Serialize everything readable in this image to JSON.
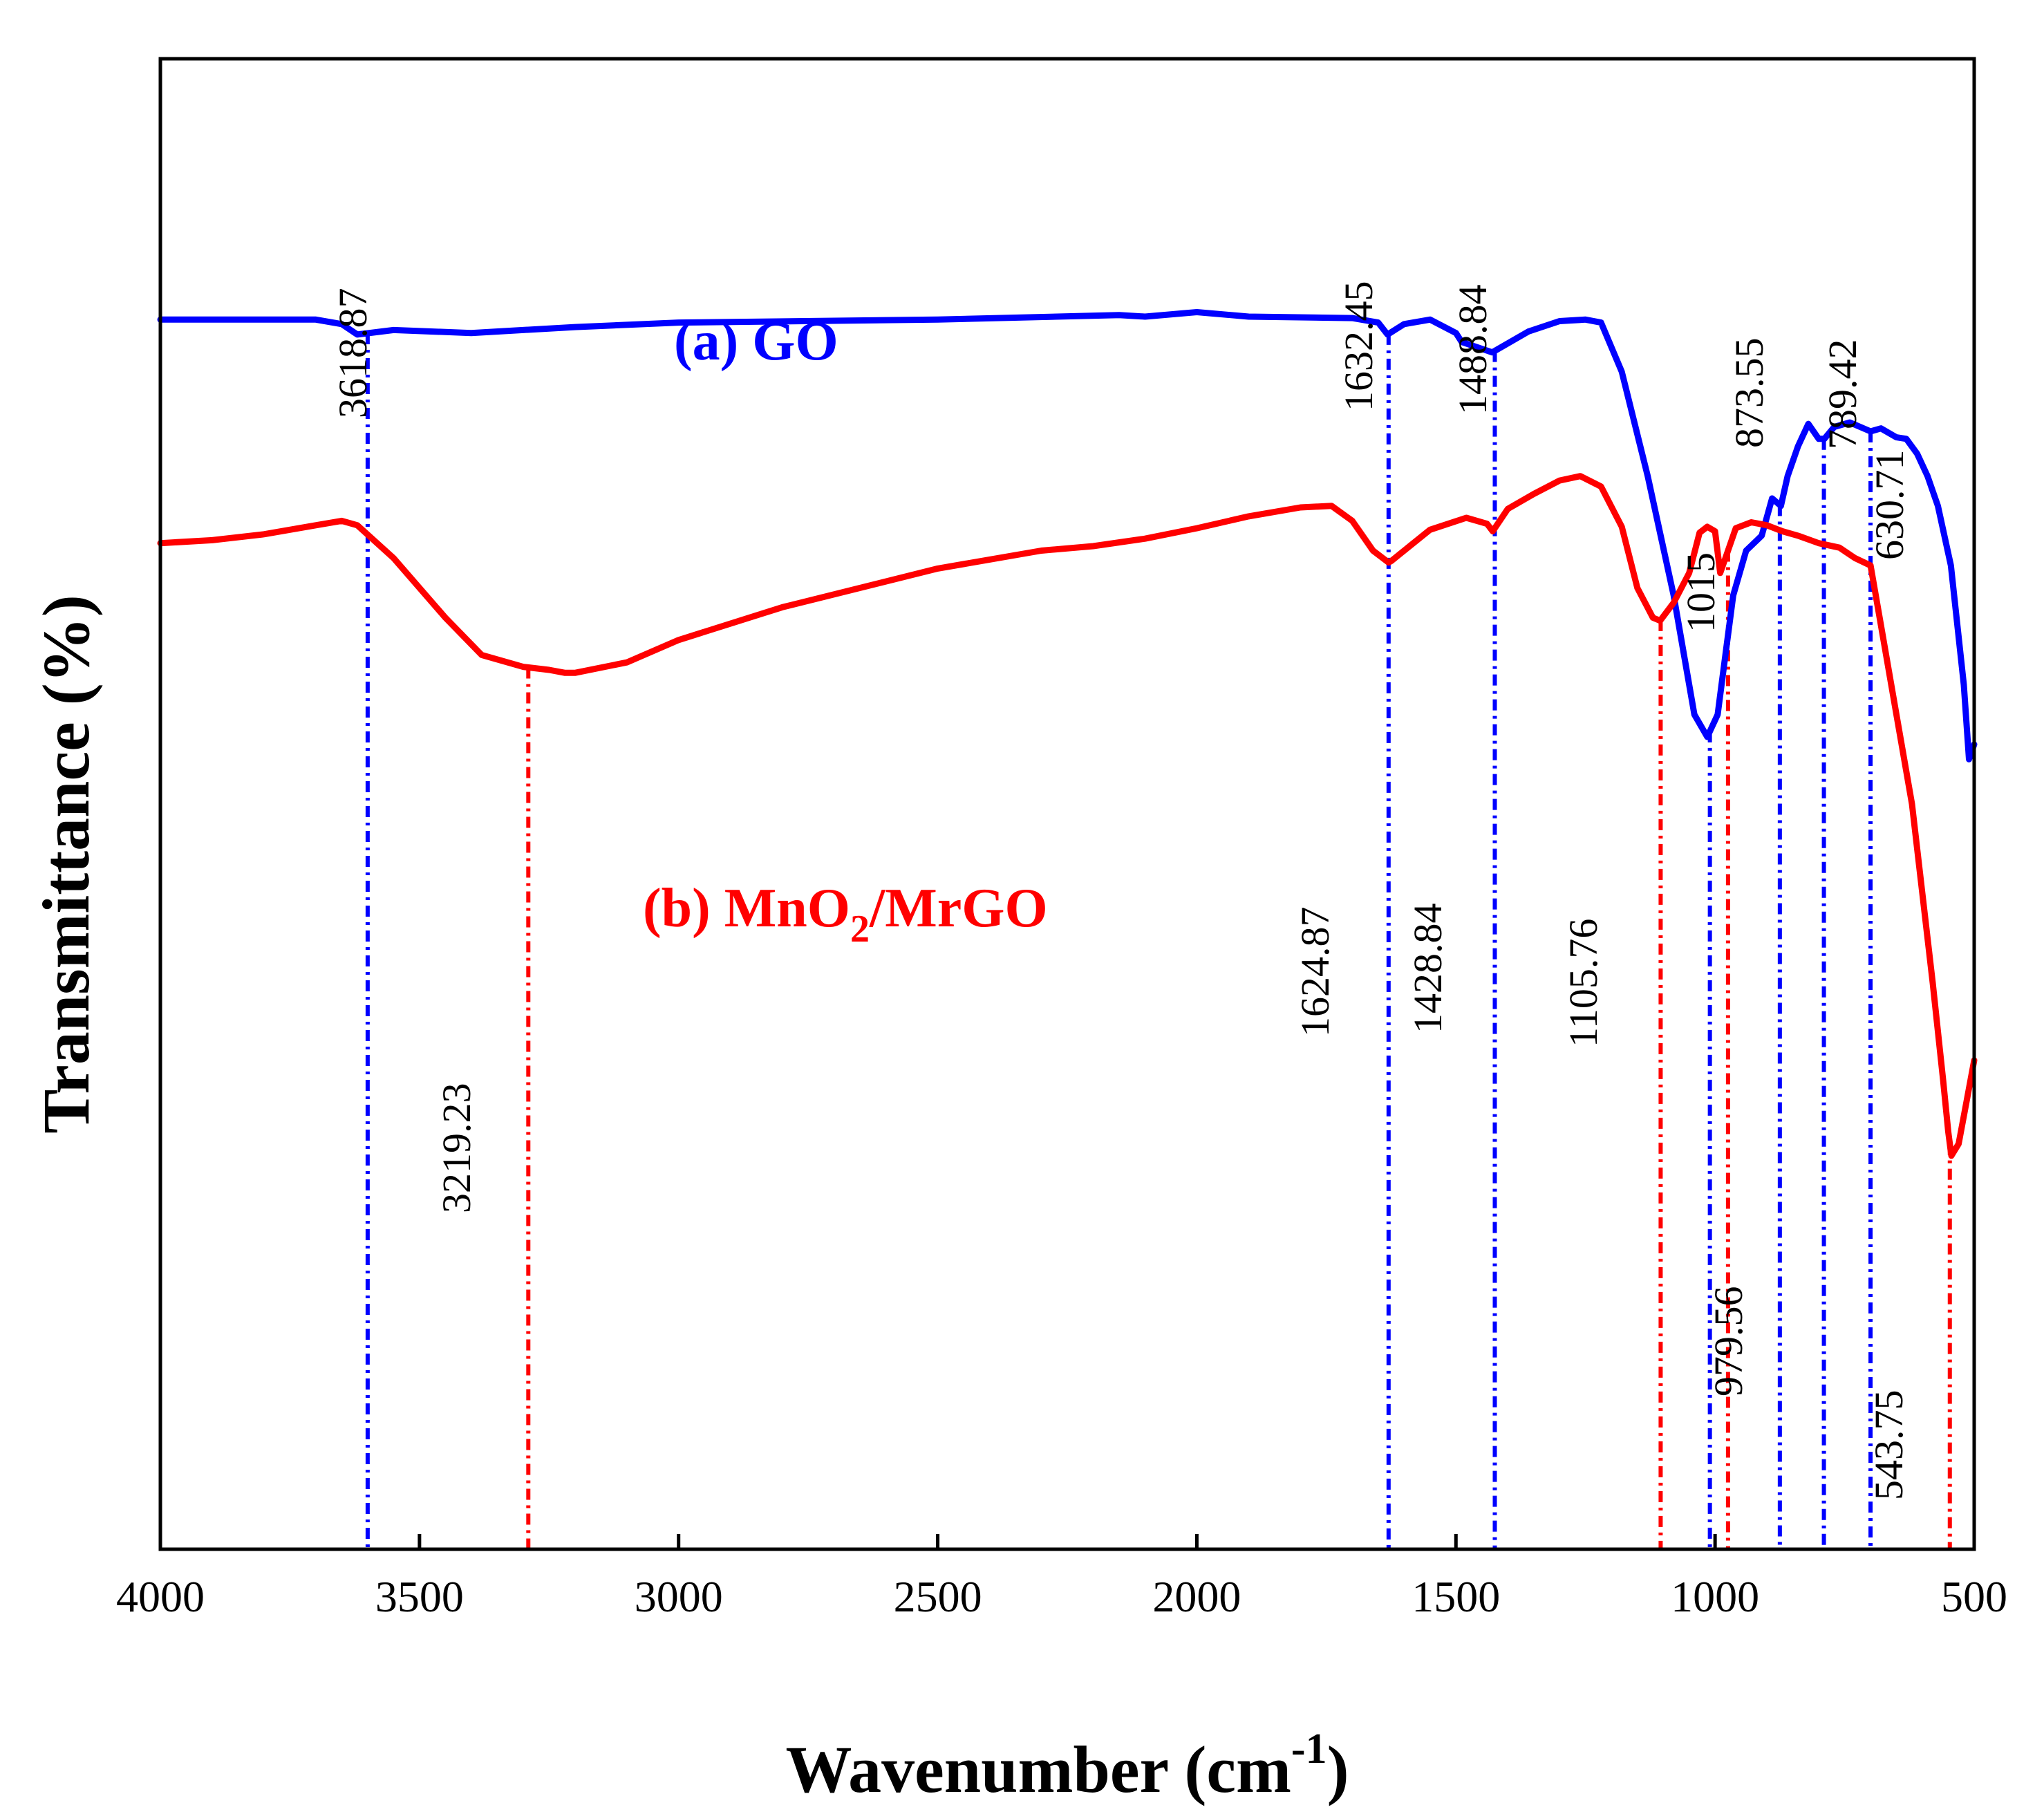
{
  "chart_data": {
    "type": "line",
    "title": "",
    "xlabel_main": "Wavenumber (cm",
    "xlabel_sup": "-1",
    "xlabel_end": ")",
    "ylabel": "Transmittance (%)",
    "xlim": [
      4000,
      500
    ],
    "ylim": [
      0,
      100
    ],
    "x_ticks": [
      4000,
      3500,
      3000,
      2500,
      2000,
      1500,
      1000,
      500
    ],
    "y_ticks_shown": false,
    "series": [
      {
        "name": "(a) GO",
        "label_parts": [
          "(a) GO"
        ],
        "color": "#0000ff",
        "x": [
          4000,
          3700,
          3650,
          3620,
          3550,
          3400,
          3300,
          3200,
          3000,
          2500,
          2150,
          2100,
          2000,
          1900,
          1700,
          1650,
          1632,
          1600,
          1550,
          1500,
          1489,
          1430,
          1360,
          1300,
          1250,
          1220,
          1180,
          1130,
          1080,
          1040,
          1015,
          995,
          980,
          965,
          940,
          910,
          890,
          873,
          860,
          840,
          820,
          800,
          789,
          770,
          740,
          700,
          680,
          650,
          631,
          610,
          590,
          570,
          545,
          520,
          510,
          500
        ],
        "y": [
          82.5,
          82.5,
          82.2,
          81.5,
          81.8,
          81.6,
          81.8,
          82.0,
          82.3,
          82.5,
          82.8,
          82.7,
          83.0,
          82.7,
          82.6,
          82.3,
          81.5,
          82.2,
          82.5,
          81.6,
          81.0,
          80.3,
          81.7,
          82.4,
          82.5,
          82.3,
          79.0,
          72.0,
          64.0,
          56.0,
          54.5,
          56.0,
          60.0,
          64.0,
          67.0,
          68.0,
          70.5,
          70.0,
          72.0,
          74.0,
          75.5,
          74.5,
          74.5,
          75.3,
          75.6,
          75.0,
          75.2,
          74.6,
          74.5,
          73.5,
          72.0,
          70.0,
          66.0,
          58.0,
          53.0,
          54.0
        ]
      },
      {
        "name": "(b) MnO2/MrGO",
        "label_parts": [
          "(b) MnO",
          "2",
          "/MrGO"
        ],
        "color": "#ff0000",
        "x": [
          4000,
          3900,
          3800,
          3700,
          3650,
          3620,
          3550,
          3450,
          3380,
          3300,
          3250,
          3219,
          3200,
          3100,
          3000,
          2800,
          2500,
          2300,
          2200,
          2100,
          2000,
          1900,
          1800,
          1740,
          1700,
          1660,
          1630,
          1625,
          1600,
          1550,
          1480,
          1440,
          1429,
          1400,
          1350,
          1300,
          1260,
          1220,
          1180,
          1150,
          1120,
          1106,
          1080,
          1050,
          1030,
          1015,
          1000,
          990,
          980,
          960,
          930,
          900,
          870,
          840,
          800,
          760,
          730,
          700,
          680,
          650,
          620,
          600,
          580,
          560,
          550,
          544,
          530,
          515,
          500
        ],
        "y": [
          67.5,
          67.7,
          68.1,
          68.7,
          69.0,
          68.7,
          66.5,
          62.5,
          60.0,
          59.2,
          59.0,
          58.8,
          58.8,
          59.5,
          61.0,
          63.2,
          65.8,
          67.0,
          67.3,
          67.8,
          68.5,
          69.3,
          69.9,
          70.0,
          69.0,
          67.0,
          66.2,
          66.3,
          67.0,
          68.4,
          69.2,
          68.8,
          68.3,
          69.8,
          70.8,
          71.7,
          72.0,
          71.3,
          68.6,
          64.5,
          62.5,
          62.3,
          63.5,
          65.5,
          68.2,
          68.6,
          68.3,
          65.5,
          66.5,
          68.5,
          68.9,
          68.7,
          68.3,
          68.0,
          67.5,
          67.2,
          66.5,
          66.0,
          62.0,
          56.0,
          50.0,
          44.0,
          38.0,
          31.5,
          28.0,
          26.4,
          27.2,
          30.0,
          32.8
        ]
      }
    ],
    "annotations": [
      {
        "label": "3618.87",
        "x": 3600,
        "color": "#0000ff"
      },
      {
        "label": "1632.45",
        "x": 1630,
        "color": "#0000ff"
      },
      {
        "label": "1488.84",
        "x": 1425,
        "color": "#0000ff"
      },
      {
        "label": "1015",
        "x": 1010,
        "color": "#0000ff"
      },
      {
        "label": "873.55",
        "x": 875,
        "color": "#0000ff"
      },
      {
        "label": "789.42",
        "x": 790,
        "color": "#0000ff"
      },
      {
        "label": "630.71",
        "x": 700,
        "color": "#0000ff"
      },
      {
        "label": "3219.23",
        "x": 3290,
        "color": "#ff0000"
      },
      {
        "label": "1624.87",
        "x": 1630,
        "color": "#0000ff"
      },
      {
        "label": "1428.84",
        "x": 1425,
        "color": "#0000ff"
      },
      {
        "label": "1105.76",
        "x": 1105,
        "color": "#ff0000"
      },
      {
        "label": "979.56",
        "x": 975,
        "color": "#ff0000"
      },
      {
        "label": "543.75",
        "x": 547,
        "color": "#ff0000"
      }
    ]
  }
}
